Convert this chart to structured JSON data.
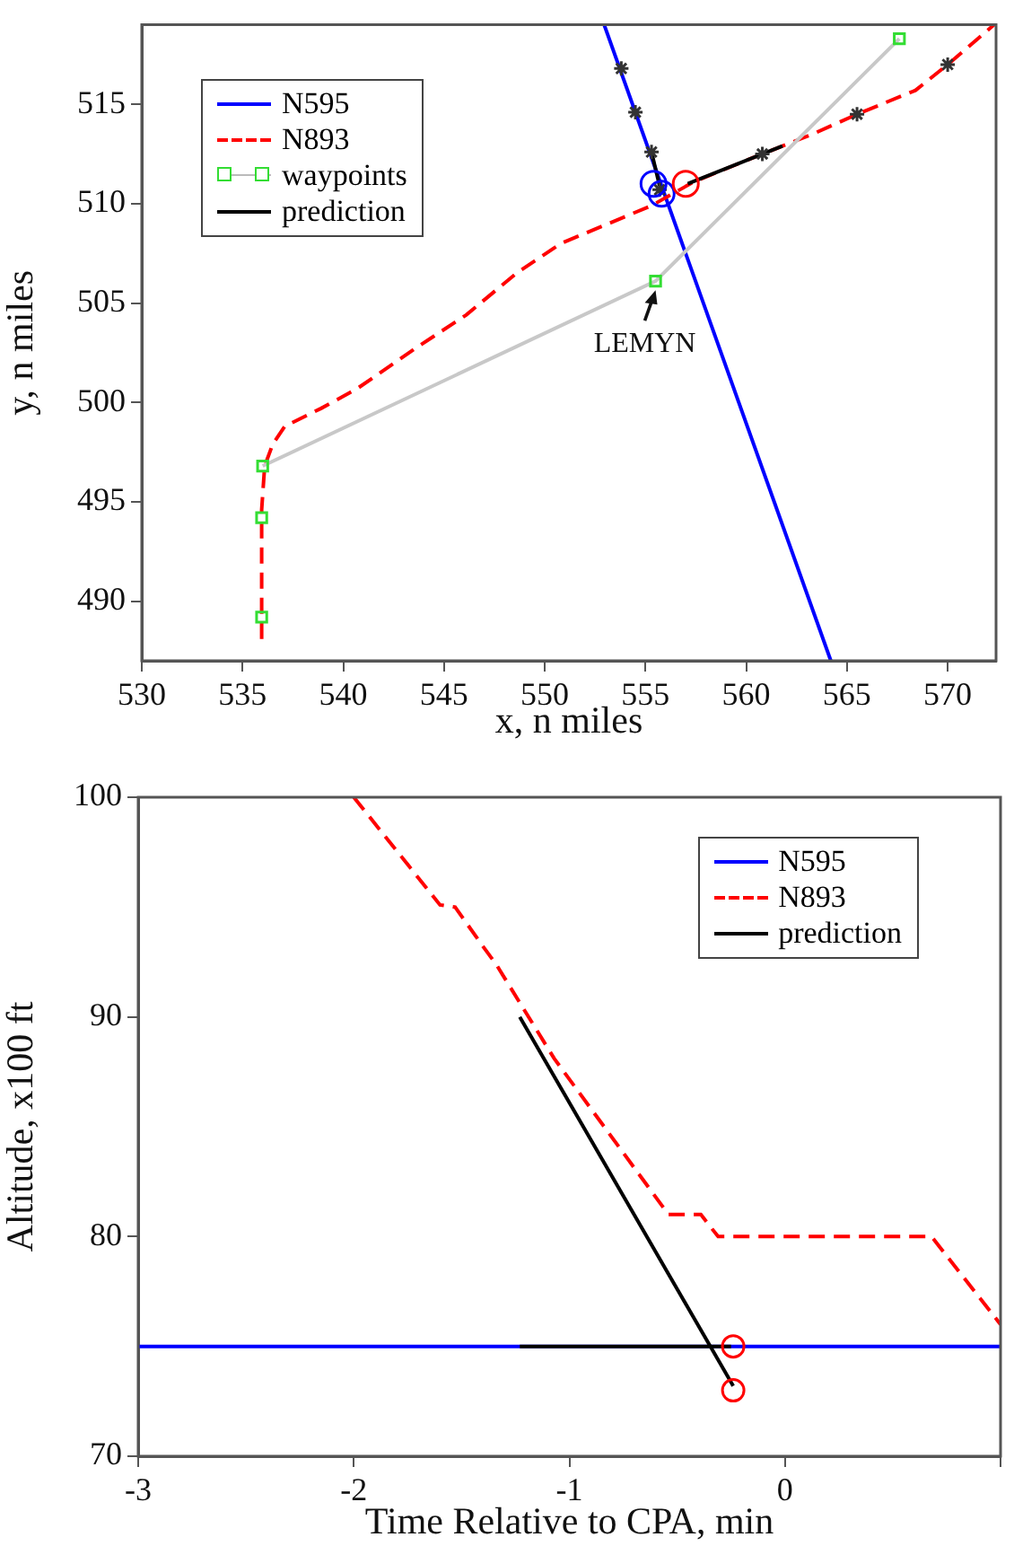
{
  "chart_data": [
    {
      "type": "line",
      "xlabel": "x, n miles",
      "ylabel": "y, n miles",
      "xlim": [
        530,
        572.4
      ],
      "ylim": [
        487,
        519
      ],
      "xticks": [
        530,
        535,
        540,
        545,
        550,
        555,
        560,
        565,
        570
      ],
      "yticks": [
        490,
        495,
        500,
        505,
        510,
        515
      ],
      "legend": "top left",
      "annotations": [
        {
          "text": "LEMYN",
          "x": 555.5,
          "y": 506.1
        }
      ],
      "series": [
        {
          "name": "N595",
          "type": "line",
          "color": "#0000ff",
          "line_style": "solid",
          "x": [
            552.95,
            564.2
          ],
          "values": [
            519,
            487
          ]
        },
        {
          "name": "N893",
          "type": "line",
          "color": "#ff0000",
          "line_style": "dashed",
          "x": [
            535.95,
            535.95,
            536.1,
            536.5,
            537.1,
            538.9,
            540.7,
            543.7,
            546.1,
            548.6,
            550.8,
            555.3,
            557.4,
            560.8,
            563.3,
            565.5,
            568.4,
            570.0,
            572.3
          ],
          "values": [
            488.1,
            494.6,
            496.8,
            497.9,
            498.8,
            499.7,
            500.7,
            502.8,
            504.4,
            506.5,
            508.0,
            509.9,
            511.1,
            512.5,
            513.5,
            514.5,
            515.7,
            517.0,
            519
          ]
        },
        {
          "type": "line",
          "color": "#c8c8c8",
          "line_style": "solid",
          "x": [
            536.0,
            555.5,
            567.6
          ],
          "values": [
            496.8,
            506.1,
            518.3
          ]
        },
        {
          "name": "waypoints",
          "type": "scatter",
          "color": "#33dd33",
          "marker": "square",
          "x": [
            535.95,
            535.95,
            536.0,
            555.5,
            567.6
          ],
          "values": [
            489.2,
            494.2,
            496.8,
            506.1,
            518.3
          ]
        },
        {
          "name": "prediction",
          "type": "line",
          "color": "#000000",
          "line_style": "solid",
          "x": [
            555.3,
            555.7
          ],
          "values": [
            512.6,
            510.9
          ]
        },
        {
          "type": "line",
          "color": "#000000",
          "line_style": "solid",
          "x": [
            557.1,
            561.8
          ],
          "values": [
            511.0,
            512.9
          ]
        },
        {
          "type": "scatter",
          "color": "#333333",
          "marker": "cross",
          "x": [
            553.8,
            554.5,
            555.3,
            555.7,
            560.8,
            565.5,
            570.0
          ],
          "values": [
            516.8,
            514.6,
            512.6,
            510.7,
            512.5,
            514.5,
            517.0
          ]
        },
        {
          "type": "scatter",
          "color": "#0000ff",
          "marker": "circle",
          "x": [
            555.4,
            555.8
          ],
          "values": [
            511.0,
            510.5
          ]
        },
        {
          "type": "scatter",
          "color": "#ff0000",
          "marker": "circle",
          "x": [
            557.0
          ],
          "values": [
            511.0
          ]
        }
      ]
    },
    {
      "type": "line",
      "xlabel": "Time Relative to CPA, min",
      "ylabel": "Altitude, x100 ft",
      "xlim": [
        -3,
        1
      ],
      "ylim": [
        70,
        100
      ],
      "xticks": [
        -3,
        -2,
        -1,
        0,
        {
          "value": 1,
          "label": null
        }
      ],
      "yticks": [
        70,
        80,
        90,
        100
      ],
      "legend": "top right",
      "series": [
        {
          "name": "N595",
          "type": "line",
          "color": "#0000ff",
          "line_style": "solid",
          "x": [
            -3,
            1
          ],
          "values": [
            75,
            75
          ]
        },
        {
          "name": "N893",
          "type": "line",
          "color": "#ff0000",
          "line_style": "dashed",
          "x": [
            -2,
            -1.6,
            -1.53,
            -1.4,
            -1.34,
            -1.07,
            -0.54,
            -0.39,
            -0.31,
            0.68,
            1
          ],
          "values": [
            100,
            95.1,
            95,
            93.2,
            92.4,
            88.1,
            81,
            81,
            80,
            80,
            76
          ]
        },
        {
          "name": "prediction",
          "type": "line",
          "color": "#000000",
          "line_style": "solid",
          "x": [
            -1.23,
            -0.24
          ],
          "values": [
            90,
            73.2
          ]
        },
        {
          "type": "line",
          "color": "#000000",
          "line_style": "solid",
          "x": [
            -1.23,
            -0.25
          ],
          "values": [
            75,
            75
          ]
        },
        {
          "type": "scatter",
          "color": "#ff0000",
          "marker": "circle",
          "x": [
            -0.24,
            -0.24
          ],
          "values": [
            75,
            73
          ]
        }
      ]
    }
  ]
}
